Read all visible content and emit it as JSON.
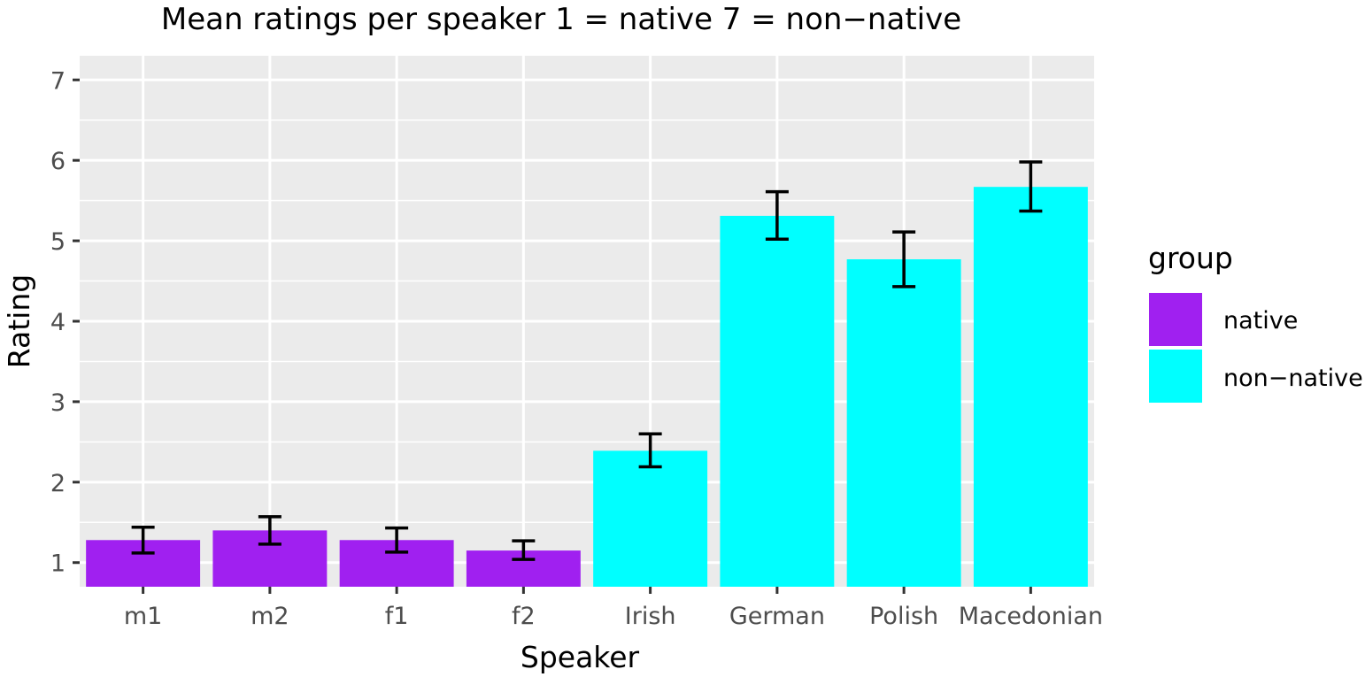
{
  "chart_data": {
    "type": "bar",
    "title": "Mean ratings per speaker 1 = native 7 = non−native",
    "xlabel": "Speaker",
    "ylabel": "Rating",
    "categories": [
      "m1",
      "m2",
      "f1",
      "f2",
      "Irish",
      "German",
      "Polish",
      "Macedonian"
    ],
    "values": [
      1.28,
      1.4,
      1.28,
      1.15,
      2.39,
      5.31,
      4.77,
      5.67
    ],
    "error_low": [
      1.12,
      1.23,
      1.13,
      1.04,
      2.19,
      5.02,
      4.43,
      5.37
    ],
    "error_high": [
      1.44,
      1.57,
      1.43,
      1.27,
      2.6,
      5.61,
      5.11,
      5.98
    ],
    "groups": [
      "native",
      "native",
      "native",
      "native",
      "non−native",
      "non−native",
      "non−native",
      "non−native"
    ],
    "yticks": [
      1,
      2,
      3,
      4,
      5,
      6,
      7
    ],
    "ylim": [
      0.7,
      7.3
    ],
    "grid": true,
    "panel_background": "#ebebeb",
    "legend": {
      "title": "group",
      "position": "right",
      "entries": [
        {
          "label": "native",
          "color": "#a020f0"
        },
        {
          "label": "non−native",
          "color": "#00ffff"
        }
      ]
    }
  }
}
